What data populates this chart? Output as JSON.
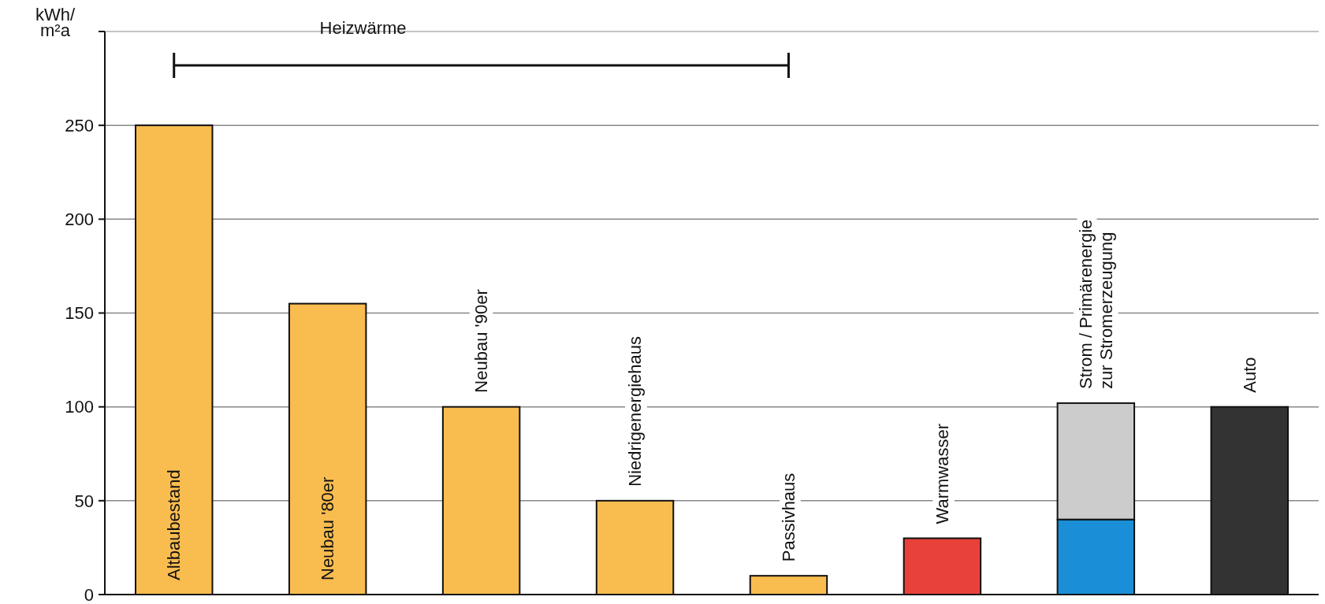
{
  "chart_data": {
    "type": "bar",
    "stacked": true,
    "ylabel": "kWh/m²a",
    "annotations": [
      "Heizwärme"
    ],
    "categories": [
      "Altbaubestand",
      "Neubau '80er",
      "Neubau '90er",
      "Niedrigenergiehaus",
      "Passivhaus",
      "Warmwasser",
      "Strom / Primärenergie zur Stromerzeugung",
      "Auto"
    ],
    "series": [
      {
        "values": [
          250,
          155,
          100,
          50,
          10,
          30,
          40,
          100
        ],
        "colors": [
          "#f9bc4f",
          "#f9bc4f",
          "#f9bc4f",
          "#f9bc4f",
          "#f9bc4f",
          "#e8413a",
          "#1a8fd8",
          "#333333"
        ]
      },
      {
        "values": [
          null,
          null,
          null,
          null,
          null,
          null,
          62,
          null
        ],
        "color": "#cccccc"
      }
    ],
    "ylim": [
      0,
      300
    ],
    "yticks": [
      0,
      50,
      100,
      150,
      200,
      250
    ],
    "grid": "y"
  }
}
